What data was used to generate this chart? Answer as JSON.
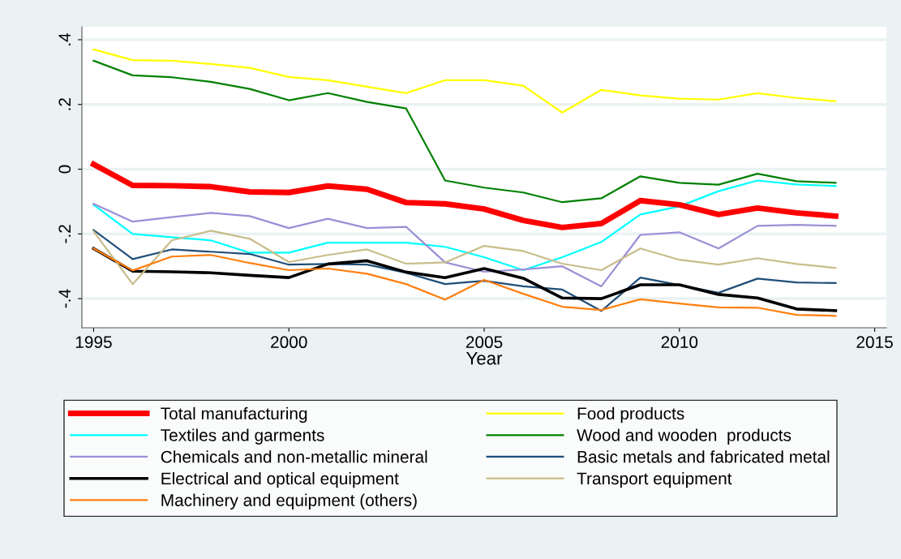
{
  "chart_data": {
    "type": "line",
    "xlabel": "Year",
    "x": [
      1995,
      1996,
      1997,
      1998,
      1999,
      2000,
      2001,
      2002,
      2003,
      2004,
      2005,
      2006,
      2007,
      2008,
      2009,
      2010,
      2011,
      2012,
      2013,
      2014
    ],
    "xlim": [
      1994.7,
      2015.3
    ],
    "xticks": [
      1995,
      2000,
      2005,
      2010,
      2015
    ],
    "ylim": [
      -0.49,
      0.44
    ],
    "yticks": [
      {
        "value": 0.4,
        "label": ".4"
      },
      {
        "value": 0.2,
        "label": ".2"
      },
      {
        "value": 0,
        "label": "0"
      },
      {
        "value": -0.2,
        "label": "-.2"
      },
      {
        "value": -0.4,
        "label": "-.4"
      }
    ],
    "grid": "y",
    "legend": "bottom",
    "marker": "none",
    "line_style": "solid",
    "series": [
      {
        "name": "Total manufacturing",
        "color": "#ff0000",
        "values": [
          0.015,
          -0.05,
          -0.051,
          -0.054,
          -0.07,
          -0.072,
          -0.052,
          -0.062,
          -0.103,
          -0.107,
          -0.123,
          -0.158,
          -0.18,
          -0.168,
          -0.097,
          -0.11,
          -0.14,
          -0.12,
          -0.135,
          -0.145
        ]
      },
      {
        "name": "Food products",
        "color": "#ffff00",
        "values": [
          0.37,
          0.337,
          0.335,
          0.325,
          0.313,
          0.285,
          0.275,
          0.255,
          0.235,
          0.275,
          0.275,
          0.258,
          0.175,
          0.245,
          0.228,
          0.218,
          0.215,
          0.235,
          0.22,
          0.21
        ]
      },
      {
        "name": "Textiles and garments",
        "color": "#00ffff",
        "values": [
          -0.11,
          -0.2,
          -0.21,
          -0.22,
          -0.258,
          -0.258,
          -0.227,
          -0.227,
          -0.227,
          -0.24,
          -0.272,
          -0.312,
          -0.272,
          -0.225,
          -0.14,
          -0.115,
          -0.068,
          -0.035,
          -0.047,
          -0.052
        ]
      },
      {
        "name": "Wood and wooden  products",
        "color": "#008000",
        "values": [
          0.335,
          0.29,
          0.284,
          0.27,
          0.248,
          0.213,
          0.235,
          0.208,
          0.188,
          -0.035,
          -0.057,
          -0.072,
          -0.102,
          -0.09,
          -0.022,
          -0.042,
          -0.048,
          -0.014,
          -0.037,
          -0.042
        ]
      },
      {
        "name": "Chemicals and non-metallic mineral",
        "color": "#9b8fd6",
        "values": [
          -0.107,
          -0.162,
          -0.148,
          -0.135,
          -0.145,
          -0.182,
          -0.153,
          -0.182,
          -0.178,
          -0.288,
          -0.317,
          -0.31,
          -0.3,
          -0.362,
          -0.203,
          -0.195,
          -0.245,
          -0.175,
          -0.172,
          -0.175
        ]
      },
      {
        "name": "Basic metals and fabricated metal",
        "color": "#1f4e79",
        "values": [
          -0.188,
          -0.278,
          -0.248,
          -0.255,
          -0.262,
          -0.295,
          -0.293,
          -0.295,
          -0.32,
          -0.355,
          -0.345,
          -0.362,
          -0.372,
          -0.438,
          -0.335,
          -0.358,
          -0.382,
          -0.338,
          -0.35,
          -0.352
        ]
      },
      {
        "name": "Electrical and optical equipment",
        "color": "#000000",
        "values": [
          -0.245,
          -0.315,
          -0.317,
          -0.32,
          -0.328,
          -0.335,
          -0.293,
          -0.283,
          -0.318,
          -0.335,
          -0.307,
          -0.337,
          -0.398,
          -0.4,
          -0.357,
          -0.357,
          -0.387,
          -0.398,
          -0.432,
          -0.437
        ]
      },
      {
        "name": "Transport equipment",
        "color": "#c8bd8a",
        "values": [
          -0.192,
          -0.355,
          -0.22,
          -0.19,
          -0.215,
          -0.287,
          -0.265,
          -0.248,
          -0.292,
          -0.288,
          -0.237,
          -0.253,
          -0.292,
          -0.312,
          -0.245,
          -0.28,
          -0.295,
          -0.275,
          -0.293,
          -0.305
        ]
      },
      {
        "name": "Machinery and equipment (others)",
        "color": "#ff7f0e",
        "values": [
          -0.245,
          -0.313,
          -0.27,
          -0.265,
          -0.29,
          -0.312,
          -0.307,
          -0.323,
          -0.355,
          -0.403,
          -0.342,
          -0.385,
          -0.425,
          -0.435,
          -0.402,
          -0.415,
          -0.427,
          -0.428,
          -0.45,
          -0.453
        ]
      }
    ]
  }
}
